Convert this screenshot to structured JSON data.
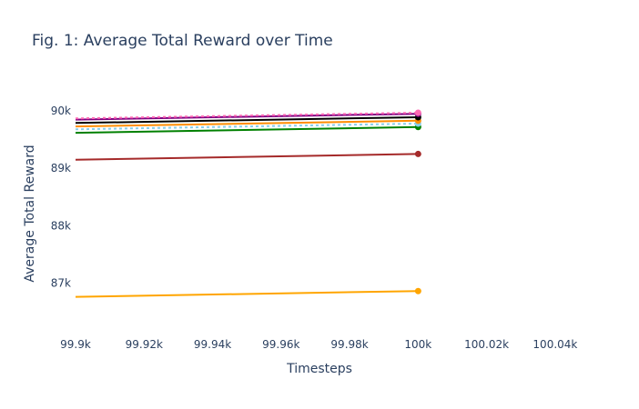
{
  "chart_data": {
    "type": "line",
    "title": "Fig. 1: Average Total Reward over Time",
    "xlabel": "Timesteps",
    "ylabel": "Average Total Reward",
    "xlim": [
      99900,
      100048
    ],
    "ylim": [
      86230,
      90350
    ],
    "x_ticks": [
      99900,
      99920,
      99940,
      99960,
      99980,
      100000,
      100020,
      100040
    ],
    "x_tick_labels": [
      "99.9k",
      "99.92k",
      "99.94k",
      "99.96k",
      "99.98k",
      "100k",
      "100.02k",
      "100.04k"
    ],
    "y_ticks": [
      87000,
      88000,
      89000,
      90000
    ],
    "y_tick_labels": [
      "87k",
      "88k",
      "89k",
      "90k"
    ],
    "grid": false,
    "legend": "none",
    "series": [
      {
        "color": "#ffa500",
        "dash": "solid",
        "x": [
          99900,
          100000
        ],
        "values": [
          86760,
          86860
        ]
      },
      {
        "color": "#a52a2a",
        "dash": "solid",
        "x": [
          99900,
          100000
        ],
        "values": [
          89150,
          89250
        ]
      },
      {
        "color": "#008000",
        "dash": "solid",
        "x": [
          99900,
          100000
        ],
        "values": [
          89620,
          89720
        ]
      },
      {
        "color": "#87ceeb",
        "dash": "dot",
        "x": [
          99900,
          100000
        ],
        "values": [
          89680,
          89780
        ]
      },
      {
        "color": "#ff8c00",
        "dash": "solid",
        "x": [
          99900,
          100000
        ],
        "values": [
          89730,
          89830
        ]
      },
      {
        "color": "#000000",
        "dash": "solid",
        "x": [
          99900,
          100000
        ],
        "values": [
          89790,
          89890
        ]
      },
      {
        "color": "#800080",
        "dash": "solid",
        "x": [
          99900,
          100000
        ],
        "values": [
          89850,
          89950
        ]
      },
      {
        "color": "#ff69b4",
        "dash": "dot",
        "x": [
          99900,
          100000
        ],
        "values": [
          89870,
          89970
        ]
      }
    ]
  }
}
